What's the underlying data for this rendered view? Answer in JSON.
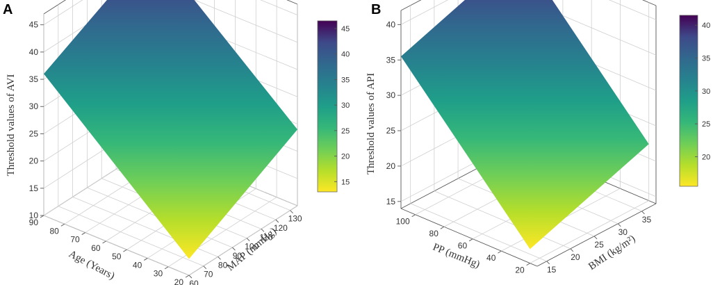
{
  "chart_data": [
    {
      "type": "surface",
      "panel": "A",
      "zlabel": "Threshold values of AVI",
      "xlabel": "Age (Years)",
      "ylabel": "MAP (mmHg)",
      "z_ticks": [
        "10",
        "15",
        "20",
        "25",
        "30",
        "35",
        "40",
        "45"
      ],
      "x_ticks": [
        "90",
        "80",
        "70",
        "60",
        "50",
        "40",
        "30",
        "20"
      ],
      "y_ticks": [
        "60",
        "70",
        "80",
        "90",
        "100",
        "110",
        "120",
        "130"
      ],
      "xlim": [
        20,
        90
      ],
      "ylim": [
        60,
        135
      ],
      "zlim": [
        10,
        47
      ],
      "colorbar_ticks": [
        "45",
        "40",
        "35",
        "30",
        "25",
        "20",
        "15"
      ],
      "colorbar_range": [
        13,
        46.5
      ],
      "surface_corners": [
        {
          "x": 90,
          "y": 60,
          "z": 36
        },
        {
          "x": 20,
          "y": 60,
          "z": 13
        },
        {
          "x": 20,
          "y": 135,
          "z": 24
        },
        {
          "x": 90,
          "y": 135,
          "z": 46.5
        }
      ]
    },
    {
      "type": "surface",
      "panel": "B",
      "zlabel": "Threshold values of API",
      "xlabel": "PP (mmHg)",
      "ylabel": "BMI (kg/m²)",
      "z_ticks": [
        "15",
        "20",
        "25",
        "30",
        "35",
        "40"
      ],
      "x_ticks": [
        "100",
        "80",
        "60",
        "40",
        "20"
      ],
      "y_ticks": [
        "15",
        "20",
        "25",
        "30",
        "35"
      ],
      "xlim": [
        15,
        110
      ],
      "ylim": [
        13,
        38
      ],
      "zlim": [
        14,
        42
      ],
      "colorbar_ticks": [
        "40",
        "35",
        "30",
        "25",
        "20"
      ],
      "colorbar_range": [
        15.5,
        41.5
      ],
      "surface_corners": [
        {
          "x": 110,
          "y": 13,
          "z": 35.5
        },
        {
          "x": 20,
          "y": 13,
          "z": 16
        },
        {
          "x": 20,
          "y": 38,
          "z": 22
        },
        {
          "x": 110,
          "y": 38,
          "z": 41.5
        }
      ]
    }
  ]
}
